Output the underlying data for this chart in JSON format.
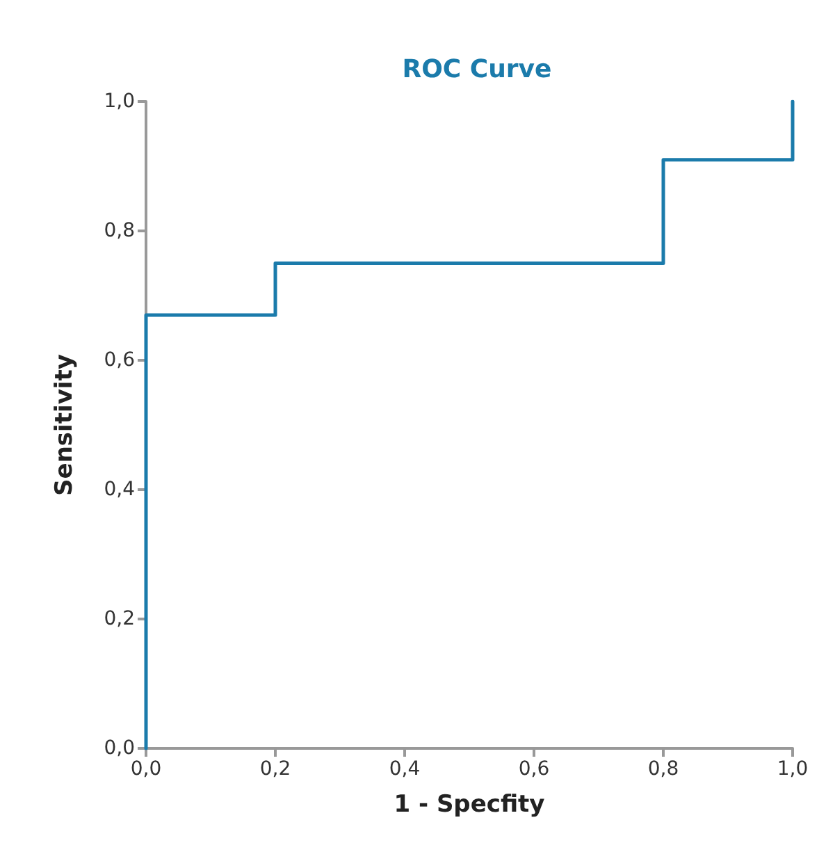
{
  "chart_data": {
    "type": "line",
    "title": "ROC Curve",
    "xlabel": "1 - Specfity",
    "ylabel": "Sensitivity",
    "series": [
      {
        "color": "#1b7bab",
        "x": [
          0,
          0,
          0.2,
          0.2,
          0.8,
          0.8,
          1,
          1
        ],
        "values": [
          0,
          0.67,
          0.67,
          0.75,
          0.75,
          0.91,
          0.91,
          1
        ]
      }
    ],
    "xlim": [
      0,
      1
    ],
    "ylim": [
      0,
      1
    ],
    "xticks": [
      {
        "value": 0,
        "label": "0,0"
      },
      {
        "value": 0.2,
        "label": "0,2"
      },
      {
        "value": 0.4,
        "label": "0,4"
      },
      {
        "value": 0.6,
        "label": "0,6"
      },
      {
        "value": 0.8,
        "label": "0,8"
      },
      {
        "value": 1,
        "label": "1,0"
      }
    ],
    "yticks": [
      {
        "value": 0,
        "label": "0,0"
      },
      {
        "value": 0.2,
        "label": "0,2"
      },
      {
        "value": 0.4,
        "label": "0,4"
      },
      {
        "value": 0.6,
        "label": "0,6"
      },
      {
        "value": 0.8,
        "label": "0,8"
      },
      {
        "value": 1,
        "label": "1,0"
      }
    ],
    "grid": false,
    "marker": "none",
    "line_style": "solid"
  }
}
